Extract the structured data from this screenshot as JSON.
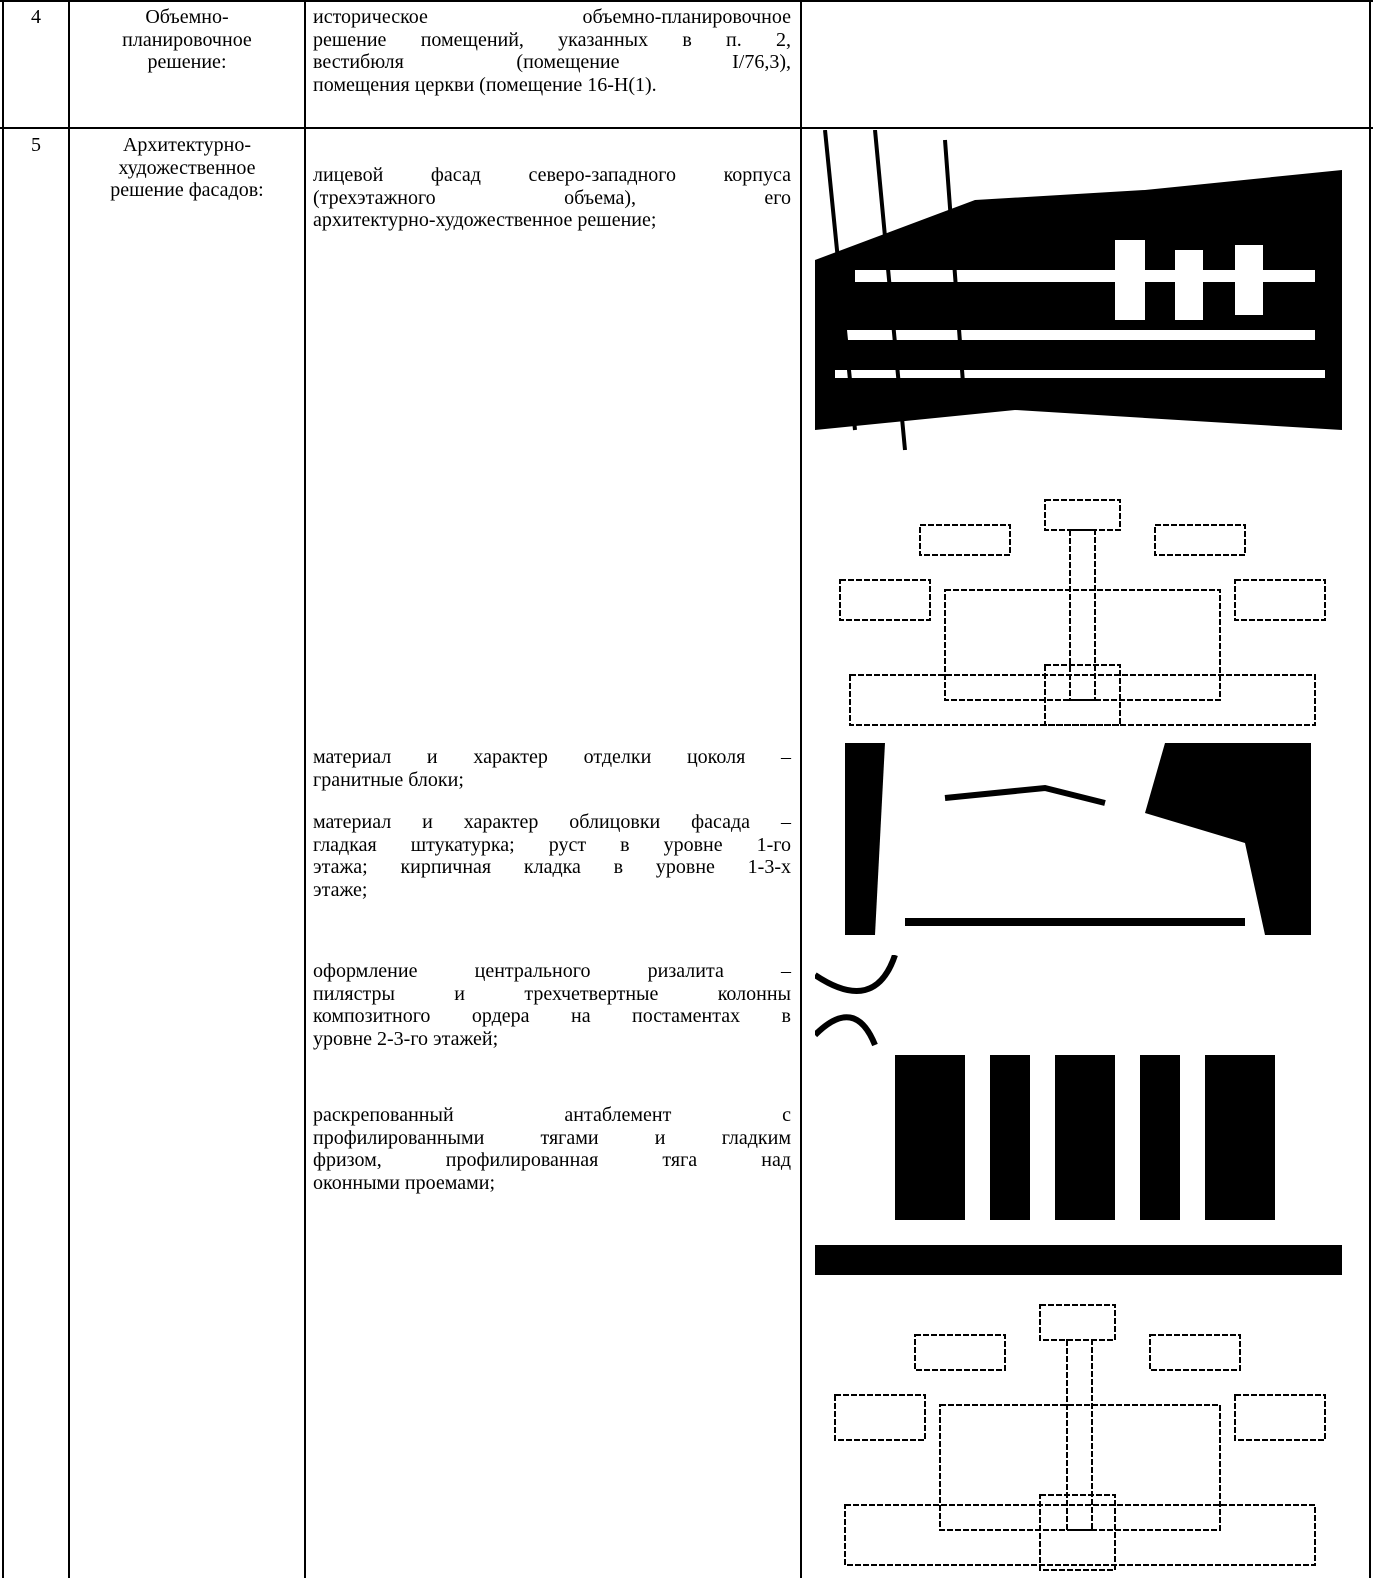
{
  "table": {
    "rows": [
      {
        "number": "4",
        "name": [
          "Объемно-",
          "планировочное",
          "решение:"
        ],
        "paragraphs": [
          [
            "историческое объемно-планировочное",
            "решение помещений, указанных в п. 2,",
            "вестибюля (помещение I/76,3),",
            "помещения церкви (помещение 16-Н(1)."
          ]
        ]
      },
      {
        "number": "5",
        "name": [
          "Архитектурно-",
          "художественное",
          "решение фасадов:"
        ],
        "paragraphs": [
          [
            "лицевой фасад северо-западного корпуса",
            "(трехэтажного объема), его",
            "архитектурно-художественное решение;"
          ],
          [
            "материал и характер отделки цоколя –",
            "гранитные блоки;"
          ],
          [
            "материал и характер облицовки фасада –",
            "гладкая штукатурка; руст в уровне 1-го",
            "этажа; кирпичная кладка в уровне 1-3-х",
            "этаже;"
          ],
          [
            "оформление центрального ризалита –",
            "пилястры и трехчетвертные колонны",
            "композитного ордера на постаментах в",
            "уровне 2-3-го этажей;"
          ],
          [
            "раскрепованный антаблемент с",
            "профилированными тягами и гладким",
            "фризом, профилированная тяга над",
            "оконными проемами;"
          ]
        ]
      }
    ]
  }
}
